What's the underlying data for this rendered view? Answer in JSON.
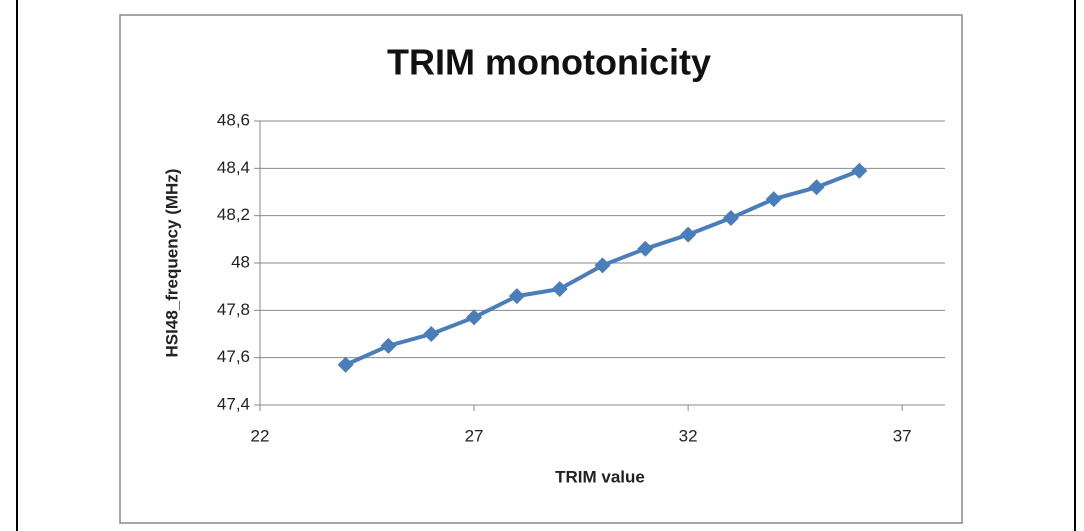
{
  "chart_data": {
    "type": "line",
    "title": "TRIM monotonicity",
    "x_label": "TRIM value",
    "y_label": "HSI48_frequency (MHz)",
    "x": [
      24,
      25,
      26,
      27,
      28,
      29,
      30,
      31,
      32,
      33,
      34,
      35,
      36
    ],
    "series": [
      {
        "name": "HSI48_frequency",
        "color": "#4a7ebb",
        "values": [
          47.57,
          47.65,
          47.7,
          47.77,
          47.86,
          47.89,
          47.99,
          48.06,
          48.12,
          48.19,
          48.27,
          48.32,
          48.39
        ]
      }
    ],
    "xlim": [
      22,
      38
    ],
    "xticks": [
      22,
      27,
      32,
      37
    ],
    "ylim": [
      47.4,
      48.6
    ],
    "yticks": [
      {
        "value": 47.4,
        "label": "47,4"
      },
      {
        "value": 47.6,
        "label": "47,6"
      },
      {
        "value": 47.8,
        "label": "47,8"
      },
      48,
      {
        "value": 48.2,
        "label": "48,2"
      },
      {
        "value": 48.4,
        "label": "48,4"
      },
      {
        "value": 48.6,
        "label": "48,6"
      }
    ],
    "grid": true
  }
}
